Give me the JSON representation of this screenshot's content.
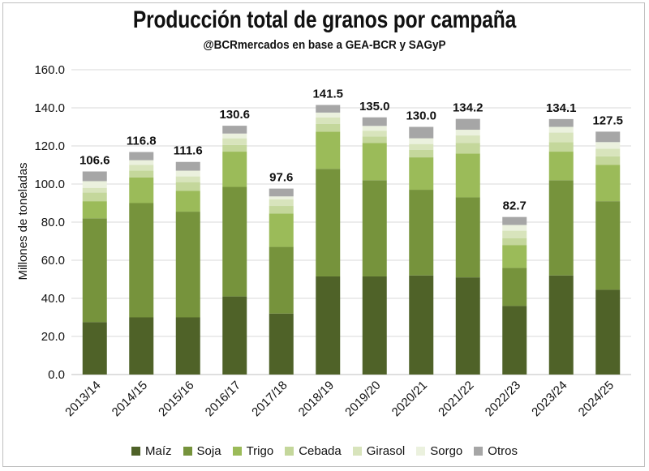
{
  "header": {
    "title": "Producción total de granos por campaña",
    "subtitle": "@BCRmercados en base a GEA-BCR y SAGyP"
  },
  "chart_data": {
    "type": "bar",
    "stacked": true,
    "title": "Producción total de granos por campaña",
    "subtitle": "@BCRmercados en base a GEA-BCR y SAGyP",
    "ylabel": "Millones de toneladas",
    "xlabel": "",
    "ylim": [
      0,
      160
    ],
    "yticks": [
      "0.0",
      "20.0",
      "40.0",
      "60.0",
      "80.0",
      "100.0",
      "120.0",
      "140.0",
      "160.0"
    ],
    "grid": true,
    "legend_position": "bottom",
    "categories": [
      "2013/14",
      "2014/15",
      "2015/16",
      "2016/17",
      "2017/18",
      "2018/19",
      "2019/20",
      "2020/21",
      "2021/22",
      "2022/23",
      "2023/24",
      "2024/25"
    ],
    "totals": [
      "106.6",
      "116.8",
      "111.6",
      "130.6",
      "97.6",
      "141.5",
      "135.0",
      "130.0",
      "134.2",
      "82.7",
      "134.1",
      "127.5"
    ],
    "series": [
      {
        "name": "Maíz",
        "color": "#4f6228",
        "values": [
          27.5,
          30.0,
          30.0,
          41.0,
          32.0,
          51.5,
          51.5,
          52.0,
          51.0,
          36.0,
          52.0,
          44.5
        ]
      },
      {
        "name": "Soja",
        "color": "#76933c",
        "values": [
          54.5,
          60.0,
          55.5,
          57.5,
          35.0,
          56.5,
          50.5,
          45.0,
          42.0,
          20.0,
          50.0,
          46.5
        ]
      },
      {
        "name": "Trigo",
        "color": "#9bbb59",
        "values": [
          9.0,
          13.5,
          11.0,
          18.5,
          17.5,
          19.5,
          19.5,
          17.0,
          23.0,
          12.0,
          15.0,
          19.0
        ]
      },
      {
        "name": "Cebada",
        "color": "#c4d79b",
        "values": [
          4.5,
          3.5,
          4.5,
          3.5,
          4.0,
          4.0,
          3.5,
          4.0,
          5.5,
          3.5,
          5.0,
          4.5
        ]
      },
      {
        "name": "Girasol",
        "color": "#d8e4bc",
        "values": [
          2.5,
          3.0,
          3.0,
          3.5,
          3.5,
          3.5,
          3.0,
          3.0,
          4.0,
          4.0,
          5.0,
          4.0
        ]
      },
      {
        "name": "Sorgo",
        "color": "#ebf1de",
        "values": [
          3.5,
          2.5,
          3.0,
          2.5,
          1.5,
          2.5,
          2.5,
          3.0,
          3.0,
          3.0,
          3.0,
          3.5
        ]
      },
      {
        "name": "Otros",
        "color": "#a6a6a6",
        "values": [
          5.1,
          4.3,
          4.6,
          4.1,
          4.1,
          4.0,
          4.5,
          6.0,
          5.7,
          4.2,
          4.1,
          5.5
        ]
      }
    ]
  }
}
